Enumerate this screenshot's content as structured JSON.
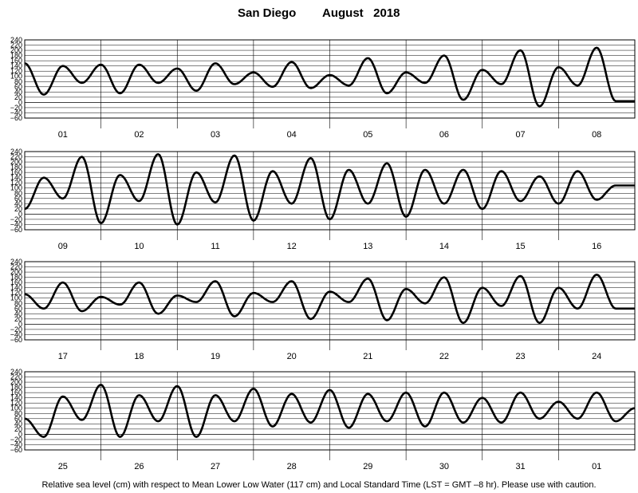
{
  "chart_data": {
    "type": "line",
    "title_location": "San Diego",
    "title_period": "August   2018",
    "footnote": "Relative sea level (cm) with respect to Mean Lower Low Water (117 cm) and Local Standard Time (LST = GMT –8 hr). Please use with caution.",
    "ylim": [
      -60,
      240
    ],
    "yticks": [
      "−60",
      "−40",
      "−20",
      "0",
      "20",
      "40",
      "60",
      "80",
      "100",
      "120",
      "140",
      "160",
      "180",
      "200",
      "220",
      "240"
    ],
    "panels": [
      {
        "days": [
          "01",
          "02",
          "03",
          "04",
          "05",
          "06",
          "07",
          "08"
        ],
        "x_hours": [
          0,
          6,
          12,
          18,
          24,
          30,
          36,
          42,
          48,
          54,
          60,
          66,
          72,
          78,
          84,
          90,
          96,
          102,
          108,
          114,
          120,
          126,
          132,
          138,
          144,
          150,
          156,
          162,
          168,
          174,
          180,
          186,
          192
        ],
        "y": [
          150,
          30,
          140,
          75,
          145,
          35,
          145,
          75,
          130,
          45,
          150,
          70,
          115,
          60,
          155,
          55,
          105,
          65,
          170,
          35,
          115,
          75,
          180,
          10,
          125,
          70,
          200,
          -15,
          135,
          65,
          210,
          5,
          5
        ]
      },
      {
        "days": [
          "09",
          "10",
          "11",
          "12",
          "13",
          "14",
          "15",
          "16"
        ],
        "x_hours": [
          0,
          6,
          12,
          18,
          24,
          30,
          36,
          42,
          48,
          54,
          60,
          66,
          72,
          78,
          84,
          90,
          96,
          102,
          108,
          114,
          120,
          126,
          132,
          138,
          144,
          150,
          156,
          162,
          168,
          174,
          180,
          186,
          192
        ],
        "y": [
          20,
          140,
          60,
          220,
          -35,
          150,
          50,
          230,
          -40,
          160,
          45,
          225,
          -25,
          165,
          40,
          215,
          -20,
          170,
          40,
          195,
          -10,
          170,
          40,
          170,
          20,
          165,
          50,
          145,
          40,
          165,
          55,
          110,
          110
        ]
      },
      {
        "days": [
          "17",
          "18",
          "19",
          "20",
          "21",
          "22",
          "23",
          "24"
        ],
        "x_hours": [
          0,
          6,
          12,
          18,
          24,
          30,
          36,
          42,
          48,
          54,
          60,
          66,
          72,
          78,
          84,
          90,
          96,
          102,
          108,
          114,
          120,
          126,
          132,
          138,
          144,
          150,
          156,
          162,
          168,
          174,
          180,
          186,
          192
        ],
        "y": [
          115,
          60,
          160,
          50,
          105,
          75,
          160,
          40,
          110,
          85,
          165,
          30,
          120,
          85,
          165,
          20,
          125,
          85,
          175,
          15,
          135,
          80,
          180,
          5,
          140,
          70,
          185,
          5,
          140,
          60,
          190,
          60,
          60
        ]
      },
      {
        "days": [
          "25",
          "26",
          "27",
          "28",
          "29",
          "30",
          "31",
          "01"
        ],
        "x_hours": [
          0,
          6,
          12,
          18,
          24,
          30,
          36,
          42,
          48,
          54,
          60,
          66,
          72,
          78,
          84,
          90,
          96,
          102,
          108,
          114,
          120,
          126,
          132,
          138,
          144,
          150,
          156,
          162,
          168,
          174,
          180,
          186,
          192
        ],
        "y": [
          60,
          -10,
          145,
          55,
          190,
          -10,
          150,
          50,
          185,
          -10,
          150,
          50,
          175,
          30,
          155,
          45,
          170,
          25,
          155,
          50,
          160,
          30,
          160,
          45,
          140,
          45,
          160,
          60,
          125,
          60,
          160,
          50,
          100
        ]
      }
    ]
  }
}
